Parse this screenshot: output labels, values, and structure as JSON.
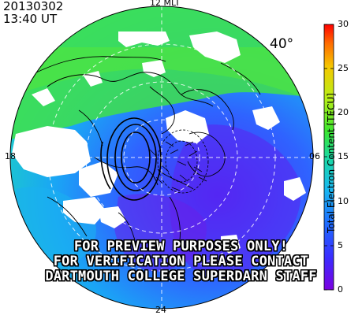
{
  "header": {
    "date": "20130302",
    "time": "13:40 UT"
  },
  "map": {
    "latitude_label": "40°",
    "mlt_labels": {
      "top": "12 MLT",
      "bottom": "24",
      "left": "18",
      "right": "06"
    }
  },
  "colorbar": {
    "title": "Total Electron Content [TECU]",
    "ticks": [
      "0",
      "5",
      "10",
      "15",
      "20",
      "25",
      "30"
    ],
    "range": [
      0,
      30
    ]
  },
  "watermark": [
    "FOR PREVIEW PURPOSES ONLY!",
    "FOR VERIFICATION PLEASE CONTACT",
    "DARTMOUTH COLLEGE SUPERDARN STAFF"
  ]
}
